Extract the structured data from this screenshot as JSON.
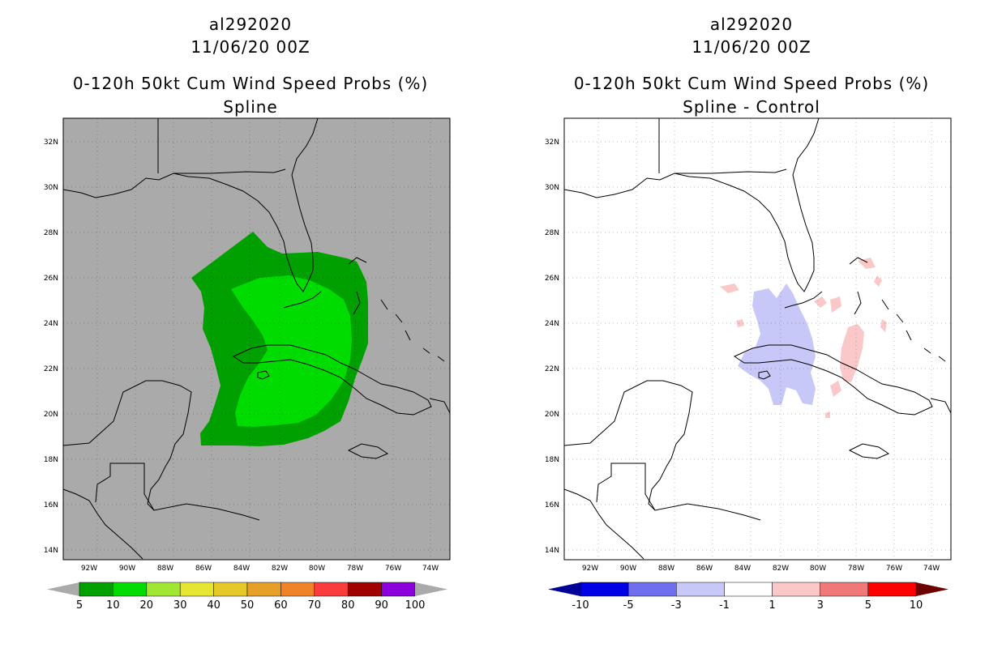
{
  "panels": [
    {
      "title_lines": [
        "al292020",
        "11/06/20 00Z",
        "0-120h 50kt Cum Wind Speed Probs (%)",
        "Spline"
      ],
      "background": "#aaaaaa",
      "colorbar": {
        "labels": [
          "5",
          "10",
          "20",
          "30",
          "40",
          "50",
          "60",
          "70",
          "80",
          "90",
          "100"
        ],
        "colors": [
          "#00a000",
          "#00dc00",
          "#a0e632",
          "#e6e632",
          "#e6c828",
          "#e6a028",
          "#f08228",
          "#fa3c3c",
          "#a00000",
          "#8c00dc"
        ],
        "under_color": "#aaaaaa",
        "over_color": "#aaaaaa"
      }
    },
    {
      "title_lines": [
        "al292020",
        "11/06/20 00Z",
        "0-120h 50kt Cum Wind Speed Probs (%)",
        "Spline - Control"
      ],
      "background": "#ffffff",
      "colorbar": {
        "labels": [
          "-10",
          "-5",
          "-3",
          "-1",
          "1",
          "3",
          "5",
          "10"
        ],
        "colors": [
          "#0000e6",
          "#6e6eee",
          "#c8c8f8",
          "#ffffff",
          "#fac8c8",
          "#f07878",
          "#ff0000"
        ],
        "under_color": "#000096",
        "over_color": "#6e0000"
      }
    }
  ],
  "lat_labels": [
    "32N",
    "30N",
    "28N",
    "26N",
    "24N",
    "22N",
    "20N",
    "18N",
    "16N",
    "14N"
  ],
  "lon_labels": [
    "92W",
    "90W",
    "88W",
    "86W",
    "84W",
    "82W",
    "80W",
    "78W",
    "76W",
    "74W"
  ]
}
